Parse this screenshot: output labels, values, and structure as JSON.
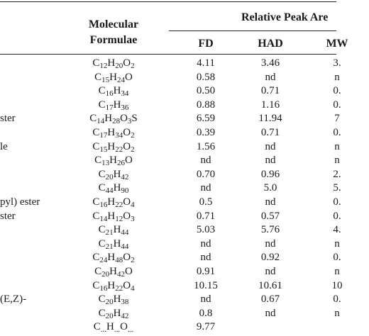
{
  "header": {
    "formula_line1": "Molecular",
    "formula_line2": "Formulae",
    "group_label": "Relative Peak Are",
    "columns": [
      "FD",
      "HAD",
      "MW"
    ]
  },
  "rows": [
    {
      "name": "",
      "formula": "C12H20O2",
      "fd": "4.11",
      "had": "3.46",
      "mw": "3."
    },
    {
      "name": "",
      "formula": "C15H24O",
      "fd": "0.58",
      "had": "nd",
      "mw": "n"
    },
    {
      "name": "",
      "formula": "C16H34",
      "fd": "0.50",
      "had": "0.71",
      "mw": "0."
    },
    {
      "name": "",
      "formula": "C17H36",
      "fd": "0.88",
      "had": "1.16",
      "mw": "0."
    },
    {
      "name": "ster",
      "formula": "C14H28O3S",
      "fd": "6.59",
      "had": "11.94",
      "mw": "7"
    },
    {
      "name": "",
      "formula": "C17H34O2",
      "fd": "0.39",
      "had": "0.71",
      "mw": "0."
    },
    {
      "name": "le",
      "formula": "C15H22O2",
      "fd": "1.56",
      "had": "nd",
      "mw": "n"
    },
    {
      "name": "",
      "formula": "C13H26O",
      "fd": "nd",
      "had": "nd",
      "mw": "n"
    },
    {
      "name": "",
      "formula": "C20H42",
      "fd": "0.70",
      "had": "0.96",
      "mw": "2."
    },
    {
      "name": "",
      "formula": "C44H90",
      "fd": "nd",
      "had": "5.0",
      "mw": "5."
    },
    {
      "name": "pyl) ester",
      "formula": "C16H22O4",
      "fd": "0.5",
      "had": "nd",
      "mw": "0."
    },
    {
      "name": "ster",
      "formula": "C14H12O3",
      "fd": "0.71",
      "had": "0.57",
      "mw": "0."
    },
    {
      "name": "",
      "formula": "C21H44",
      "fd": "5.03",
      "had": "5.76",
      "mw": "4."
    },
    {
      "name": "",
      "formula": "C21H44",
      "fd": "nd",
      "had": "nd",
      "mw": "n"
    },
    {
      "name": "",
      "formula": "C24H48O2",
      "fd": "nd",
      "had": "0.92",
      "mw": "0."
    },
    {
      "name": "",
      "formula": "C20H42O",
      "fd": "0.91",
      "had": "nd",
      "mw": "n"
    },
    {
      "name": "",
      "formula": "C16H22O4",
      "fd": "10.15",
      "had": "10.61",
      "mw": "10"
    },
    {
      "name": "(E,Z)-",
      "formula": "C20H38",
      "fd": "nd",
      "had": "0.67",
      "mw": "0."
    },
    {
      "name": "",
      "formula": "C20H42",
      "fd": "0.8",
      "had": "nd",
      "mw": "n"
    },
    {
      "name": "",
      "formula": "C...H...O...",
      "fd": "9.77",
      "had": "",
      "mw": ""
    }
  ]
}
